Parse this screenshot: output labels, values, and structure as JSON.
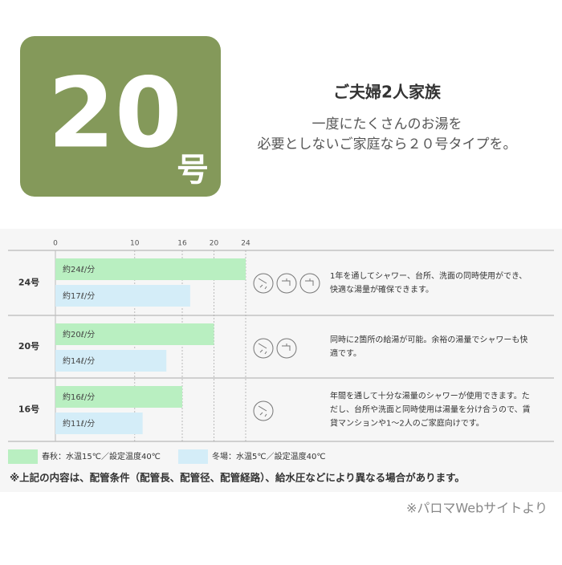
{
  "header": {
    "badge_number": "20",
    "badge_unit": "号",
    "title": "ご夫婦2人家族",
    "subtitle": [
      "一度にたくさんのお湯を",
      "必要としないご家庭なら２０号タイプを。"
    ]
  },
  "chart_data": {
    "type": "bar",
    "orientation": "horizontal",
    "categories": [
      "24号",
      "20号",
      "16号"
    ],
    "series": [
      {
        "name": "春秋：水温15℃／設定温度40℃",
        "color": "#b9efc1",
        "values": [
          24,
          20,
          16
        ],
        "value_labels": [
          "約24ℓ/分",
          "約20ℓ/分",
          "約16ℓ/分"
        ]
      },
      {
        "name": "冬場：水温5℃／設定温度40℃",
        "color": "#d4edf8",
        "values": [
          17,
          14,
          11
        ],
        "value_labels": [
          "約17ℓ/分",
          "約14ℓ/分",
          "約11ℓ/分"
        ]
      }
    ],
    "xlim": [
      0,
      24
    ],
    "xticks": [
      0,
      10,
      16,
      20,
      24
    ],
    "grid": true,
    "descriptions": [
      [
        "1年を通してシャワー、台所、洗面の同時使用ができ、",
        "快適な湯量が確保できます。"
      ],
      [
        "同時に2箇所の給湯が可能。余裕の湯量でシャワーも快",
        "適です。"
      ],
      [
        "年間を通して十分な湯量のシャワーが使用できます。た",
        "だし、台所や洗面と同時使用は湯量を分け合うので、賃",
        "貸マンションや1～2人のご家庭向けです。"
      ]
    ]
  },
  "note": "※上記の内容は、配管条件（配管長、配管径、配管経路）、給水圧などにより異なる場合があります。",
  "source": "※パロマWebサイトより"
}
